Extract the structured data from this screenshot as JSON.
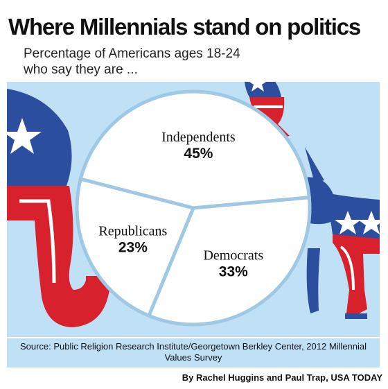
{
  "header": {
    "title": "Where Millennials stand on politics",
    "subtitle": "Percentage of Americans ages 18-24 who say they are ..."
  },
  "footer": {
    "source": "Source: Public Religion Research Institute/Georgetown Berkley Center, 2012 Millennial Values Survey",
    "credit": "By Rachel Huggins and Paul Trap, USA TODAY"
  },
  "colors": {
    "background": "#bfe0f5",
    "pie": "#ffffff",
    "divider": "#9fc8e4",
    "red": "#d7212c",
    "blue": "#2b4f9e",
    "white": "#ffffff"
  },
  "chart_data": {
    "type": "pie",
    "title": "Where Millennials stand on politics",
    "subtitle": "Percentage of Americans ages 18-24 who say they are ...",
    "slices": [
      {
        "label": "Independents",
        "value": 45,
        "value_label": "45%"
      },
      {
        "label": "Democrats",
        "value": 33,
        "value_label": "33%"
      },
      {
        "label": "Republicans",
        "value": 23,
        "value_label": "23%"
      }
    ]
  }
}
